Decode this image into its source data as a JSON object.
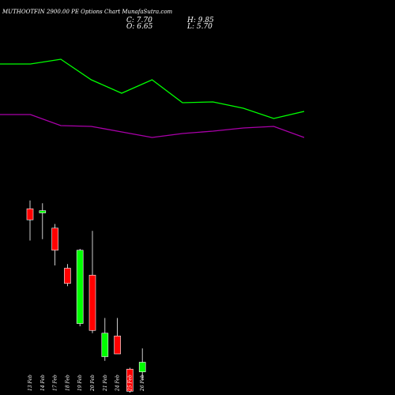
{
  "header": {
    "title": "MUTHOOTFIN 2900.00 PE Options Chart MunafaSutra.com",
    "close": "C: 7.70",
    "open": "O: 6.65",
    "high": "H: 9.85",
    "low": "L: 5.70"
  },
  "chart_data": {
    "type": "candlestick",
    "up_color": "#00ff00",
    "down_color": "#ff0000",
    "overlay_colors": {
      "upper": "#00ff00",
      "lower": "#aa00aa"
    },
    "candles": [
      {
        "date": "13 Feb",
        "open": 24.5,
        "high": 27.5,
        "low": 13.0,
        "close": 20.5
      },
      {
        "date": "14 Feb",
        "open": 23.0,
        "high": 26.5,
        "low": 13.5,
        "close": 23.8
      },
      {
        "date": "17 Feb",
        "open": 17.5,
        "high": 19.0,
        "low": 4.0,
        "close": 9.5
      },
      {
        "date": "18 Feb",
        "open": 3.0,
        "high": 4.5,
        "low": -3.5,
        "close": -2.5
      },
      {
        "date": "19 Feb",
        "open": -17.0,
        "high": 10.0,
        "low": -18.0,
        "close": 9.5
      },
      {
        "date": "20 Feb",
        "open": 0.5,
        "high": 16.5,
        "low": -20.5,
        "close": -19.5
      },
      {
        "date": "21 Feb",
        "open": -29.0,
        "high": -15.0,
        "low": -30.5,
        "close": -20.5
      },
      {
        "date": "24 Feb",
        "open": -21.5,
        "high": -15.0,
        "low": -27.5,
        "close": -28.0
      },
      {
        "date": "25 Feb",
        "open": -33.5,
        "high": -33.0,
        "low": -42.0,
        "close": -41.5
      },
      {
        "date": "26 Feb",
        "open": -34.5,
        "high": -26.0,
        "low": -37.5,
        "close": -31.0
      }
    ],
    "upper_line": [
      80,
      80,
      86,
      60,
      43,
      60,
      31,
      32,
      24,
      11,
      20
    ],
    "lower_line": [
      52,
      52,
      38,
      37,
      30,
      23,
      28,
      31,
      35,
      37,
      23
    ]
  }
}
